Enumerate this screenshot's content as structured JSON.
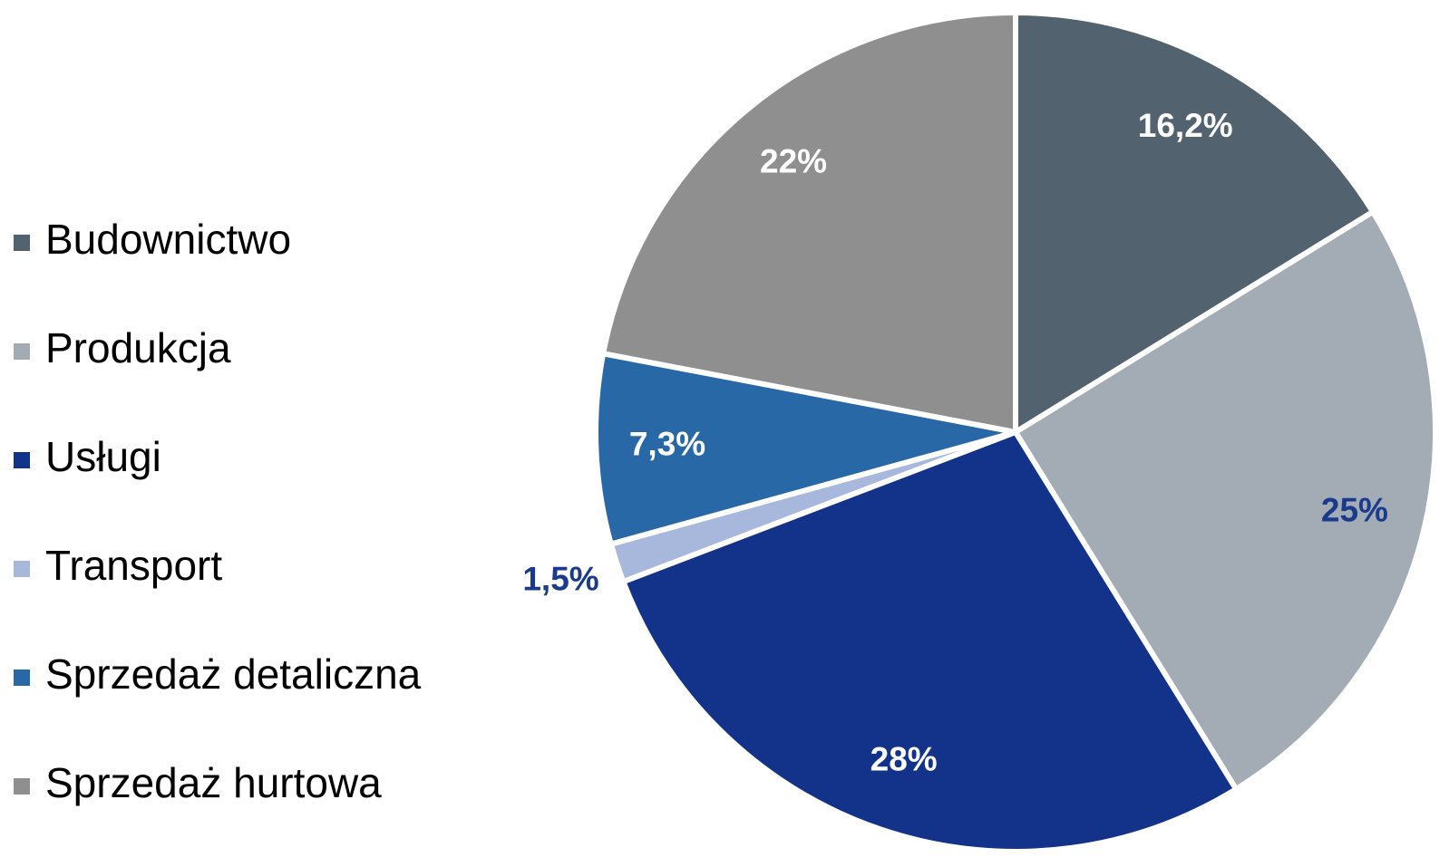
{
  "chart_data": {
    "type": "pie",
    "categories": [
      "Budownictwo",
      "Produkcja",
      "Usługi",
      "Transport",
      "Sprzedaż detaliczna",
      "Sprzedaż hurtowa"
    ],
    "values": [
      16.2,
      25,
      28,
      1.5,
      7.3,
      22
    ],
    "value_labels": [
      "16,2%",
      "25%",
      "28%",
      "1,5%",
      "7,3%",
      "22%"
    ],
    "colors": [
      "#52626e",
      "#a3acb5",
      "#13338a",
      "#a7b8dc",
      "#2968a7",
      "#8f8f8f"
    ],
    "label_colors": [
      "#ffffff",
      "#1a3a8c",
      "#ffffff",
      "#1a3a8c",
      "#ffffff",
      "#ffffff"
    ],
    "legend": "left"
  }
}
